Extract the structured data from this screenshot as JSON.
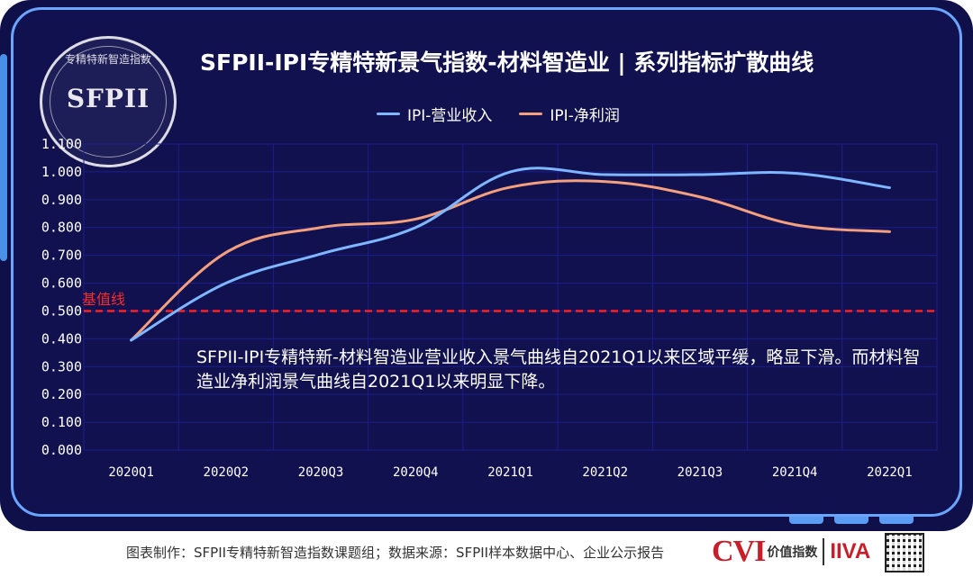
{
  "logo": {
    "name": "SFPII",
    "ring_text": "专精特新智造指数"
  },
  "title": "SFPII-IPI专精特新景气指数-材料智造业 | 系列指标扩散曲线",
  "baseline_label": "基值线",
  "annotation": "SFPII-IPI专精特新-材料智造业营业收入景气曲线自2021Q1以来区域平缓，略显下滑。而材料智造业净利润景气曲线自2021Q1以来明显下降。",
  "footer": "图表制作：SFPII专精特新智造指数课题组；数据来源：SFPII样本数据中心、企业公示报告",
  "brand": {
    "cvi": "CVI",
    "cvi_cn": "价值指数",
    "iiva": "IIVA"
  },
  "colors": {
    "series_revenue": "#7eb6ff",
    "series_profit": "#f4a07e",
    "baseline": "#ff2020",
    "grid": "#1d1d8c",
    "axis_text": "#ffffff"
  },
  "chart_data": {
    "type": "line",
    "title": "SFPII-IPI专精特新景气指数-材料智造业 | 系列指标扩散曲线",
    "categories": [
      "2020Q1",
      "2020Q2",
      "2020Q3",
      "2020Q4",
      "2021Q1",
      "2021Q2",
      "2021Q3",
      "2021Q4",
      "2022Q1"
    ],
    "series": [
      {
        "name": "IPI-营业收入",
        "values": [
          0.395,
          0.6,
          0.705,
          0.8,
          1.0,
          0.99,
          0.99,
          0.995,
          0.943
        ]
      },
      {
        "name": "IPI-净利润",
        "values": [
          0.395,
          0.71,
          0.8,
          0.83,
          0.945,
          0.965,
          0.91,
          0.81,
          0.785
        ]
      }
    ],
    "baseline": 0.5,
    "ylim": [
      0,
      1.1
    ],
    "yticks": [
      "0.000",
      "0.100",
      "0.200",
      "0.300",
      "0.400",
      "0.500",
      "0.600",
      "0.700",
      "0.800",
      "0.900",
      "1.000",
      "1.100"
    ],
    "legend": "top-center",
    "grid": true,
    "xlabel": "",
    "ylabel": ""
  }
}
